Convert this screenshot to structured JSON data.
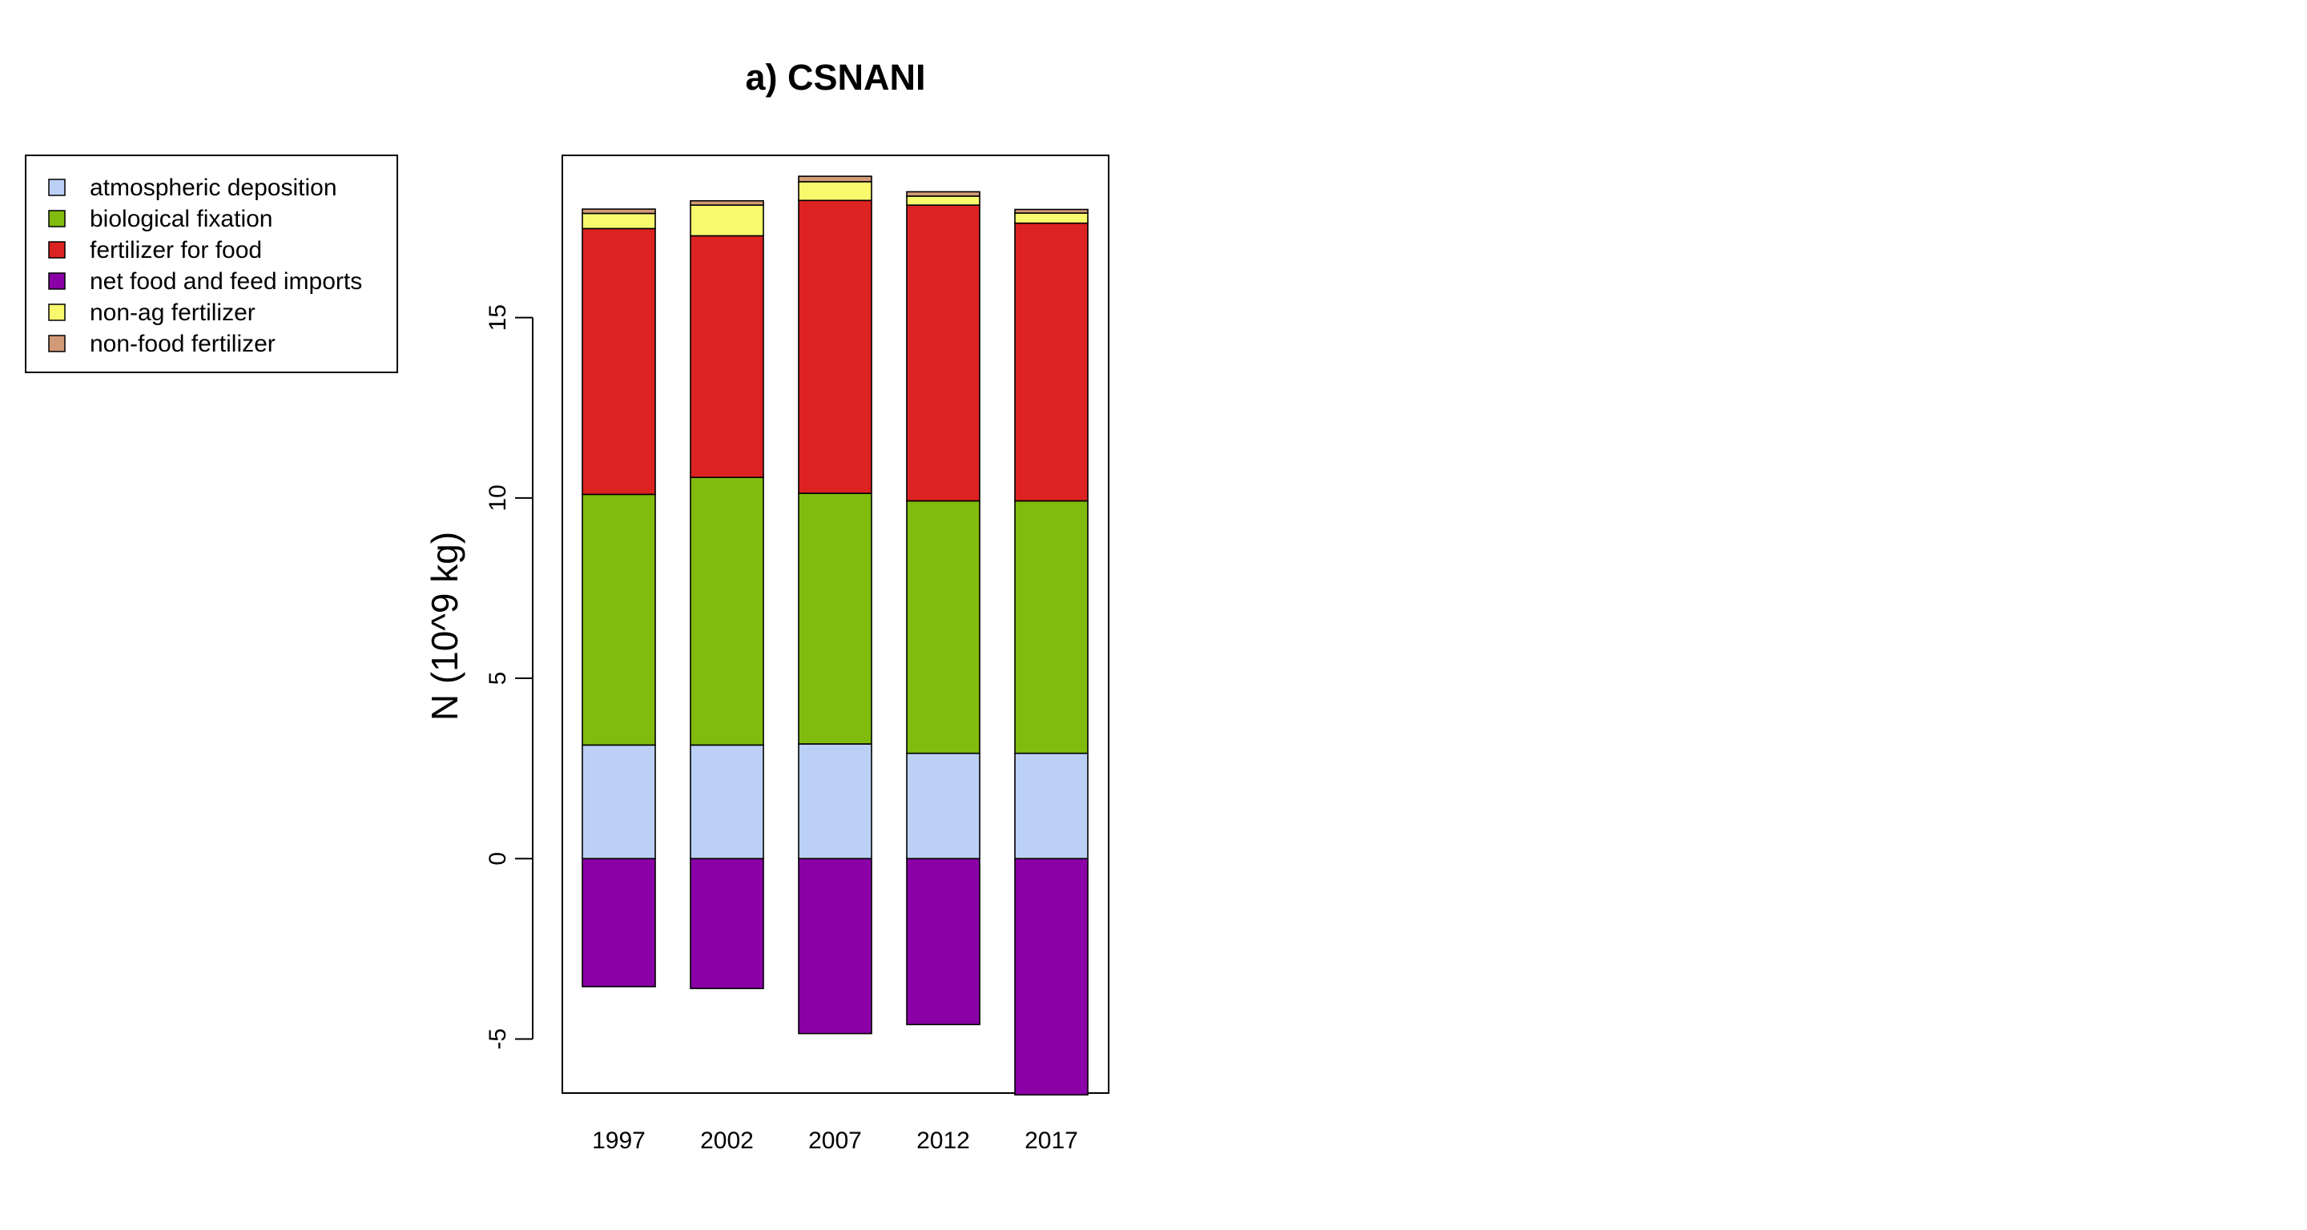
{
  "chart_data": {
    "type": "bar",
    "stacked": true,
    "title": "a) CSNANI",
    "ylabel": "N (10^9 kg)",
    "xlabel": "",
    "categories": [
      "1997",
      "2002",
      "2007",
      "2012",
      "2017"
    ],
    "ylim": [
      -6.5,
      19.5
    ],
    "yticks": [
      -5,
      0,
      5,
      10,
      15
    ],
    "ytick_labels": [
      "-5",
      "0",
      "5",
      "10",
      "15"
    ],
    "grid": false,
    "legend_position": "top-left, outside plot",
    "series": [
      {
        "name": "atmospheric deposition",
        "color": "#bcd0f6",
        "values": [
          3.15,
          3.15,
          3.18,
          2.92,
          2.92
        ]
      },
      {
        "name": "biological fixation",
        "color": "#80bb0e",
        "values": [
          6.95,
          7.42,
          6.95,
          7.0,
          7.0
        ]
      },
      {
        "name": "fertilizer for food",
        "color": "#dd2222",
        "values": [
          7.37,
          6.7,
          8.12,
          8.2,
          7.7
        ]
      },
      {
        "name": "net food and feed imports",
        "color": "#8a00a6",
        "values": [
          -3.55,
          -3.6,
          -4.85,
          -4.6,
          -6.55
        ]
      },
      {
        "name": "non-ag fertilizer",
        "color": "#f9f96e",
        "values": [
          0.42,
          0.85,
          0.52,
          0.25,
          0.28
        ]
      },
      {
        "name": "non-food fertilizer",
        "color": "#d39a78",
        "values": [
          0.12,
          0.12,
          0.15,
          0.12,
          0.1
        ]
      }
    ]
  }
}
